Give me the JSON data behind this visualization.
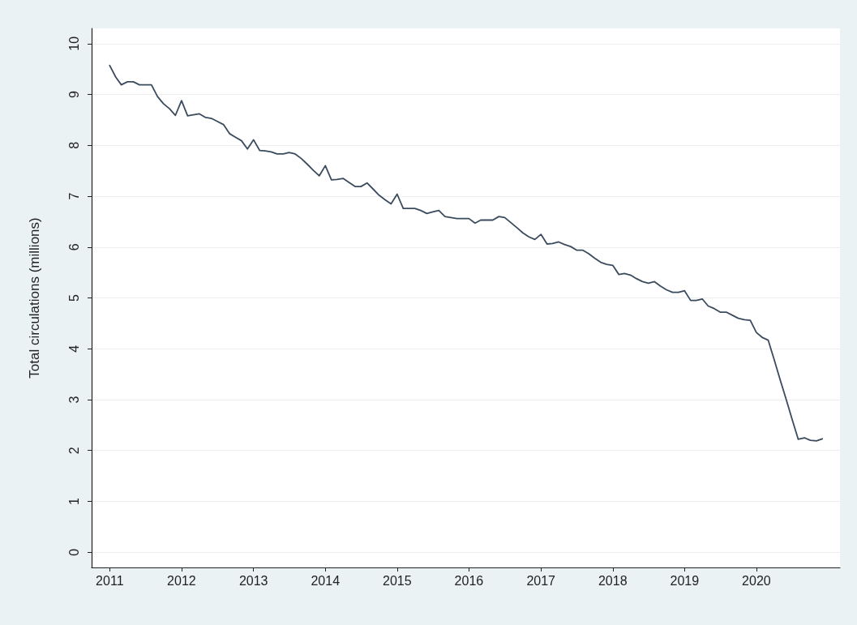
{
  "chart_data": {
    "type": "line",
    "ylabel": "Total circulations (millions)",
    "x": [
      "2011-01",
      "2011-02",
      "2011-03",
      "2011-04",
      "2011-05",
      "2011-06",
      "2011-07",
      "2011-08",
      "2011-09",
      "2011-10",
      "2011-11",
      "2011-12",
      "2012-01",
      "2012-02",
      "2012-03",
      "2012-04",
      "2012-05",
      "2012-06",
      "2012-07",
      "2012-08",
      "2012-09",
      "2012-10",
      "2012-11",
      "2012-12",
      "2013-01",
      "2013-02",
      "2013-03",
      "2013-04",
      "2013-05",
      "2013-06",
      "2013-07",
      "2013-08",
      "2013-09",
      "2013-10",
      "2013-11",
      "2013-12",
      "2014-01",
      "2014-02",
      "2014-03",
      "2014-04",
      "2014-05",
      "2014-06",
      "2014-07",
      "2014-08",
      "2014-09",
      "2014-10",
      "2014-11",
      "2014-12",
      "2015-01",
      "2015-02",
      "2015-03",
      "2015-04",
      "2015-05",
      "2015-06",
      "2015-07",
      "2015-08",
      "2015-09",
      "2015-10",
      "2015-11",
      "2015-12",
      "2016-01",
      "2016-02",
      "2016-03",
      "2016-04",
      "2016-05",
      "2016-06",
      "2016-07",
      "2016-08",
      "2016-09",
      "2016-10",
      "2016-11",
      "2016-12",
      "2017-01",
      "2017-02",
      "2017-03",
      "2017-04",
      "2017-05",
      "2017-06",
      "2017-07",
      "2017-08",
      "2017-09",
      "2017-10",
      "2017-11",
      "2017-12",
      "2018-01",
      "2018-02",
      "2018-03",
      "2018-04",
      "2018-05",
      "2018-06",
      "2018-07",
      "2018-08",
      "2018-09",
      "2018-10",
      "2018-11",
      "2018-12",
      "2019-01",
      "2019-02",
      "2019-03",
      "2019-04",
      "2019-05",
      "2019-06",
      "2019-07",
      "2019-08",
      "2019-09",
      "2019-10",
      "2019-11",
      "2019-12",
      "2020-01",
      "2020-02",
      "2020-03",
      "2020-04",
      "2020-05",
      "2020-06",
      "2020-07",
      "2020-08",
      "2020-09",
      "2020-10",
      "2020-11",
      "2020-12"
    ],
    "series": [
      {
        "color": "#3b4b5e",
        "values": [
          9.57,
          9.34,
          9.19,
          9.25,
          9.25,
          9.19,
          9.19,
          9.19,
          8.96,
          8.82,
          8.72,
          8.59,
          8.88,
          8.58,
          8.6,
          8.62,
          8.55,
          8.53,
          8.47,
          8.41,
          8.23,
          8.16,
          8.09,
          7.93,
          8.11,
          7.9,
          7.89,
          7.87,
          7.83,
          7.83,
          7.86,
          7.83,
          7.74,
          7.63,
          7.51,
          7.4,
          7.6,
          7.32,
          7.33,
          7.35,
          7.27,
          7.19,
          7.19,
          7.26,
          7.14,
          7.02,
          6.93,
          6.85,
          7.04,
          6.76,
          6.76,
          6.76,
          6.72,
          6.66,
          6.69,
          6.72,
          6.6,
          6.58,
          6.56,
          6.56,
          6.56,
          6.47,
          6.53,
          6.53,
          6.53,
          6.6,
          6.58,
          6.48,
          6.38,
          6.28,
          6.2,
          6.15,
          6.25,
          6.06,
          6.07,
          6.1,
          6.05,
          6.01,
          5.94,
          5.94,
          5.87,
          5.78,
          5.7,
          5.66,
          5.64,
          5.46,
          5.48,
          5.45,
          5.38,
          5.32,
          5.29,
          5.32,
          5.23,
          5.16,
          5.11,
          5.11,
          5.14,
          4.95,
          4.95,
          4.98,
          4.84,
          4.79,
          4.72,
          4.72,
          4.66,
          4.6,
          4.57,
          4.56,
          4.32,
          4.22,
          4.17,
          3.78,
          3.39,
          3.0,
          2.61,
          2.22,
          2.25,
          2.2,
          2.19,
          2.23
        ]
      }
    ],
    "xlim": [
      "2010-10",
      "2021-03"
    ],
    "xticks": [
      "2011",
      "2012",
      "2013",
      "2014",
      "2015",
      "2016",
      "2017",
      "2018",
      "2019",
      "2020"
    ],
    "ylim": [
      -0.3,
      10.3
    ],
    "yticks": [
      0,
      1,
      2,
      3,
      4,
      5,
      6,
      7,
      8,
      9,
      10
    ],
    "grid": "y",
    "marker": "none",
    "line_style": "solid"
  }
}
